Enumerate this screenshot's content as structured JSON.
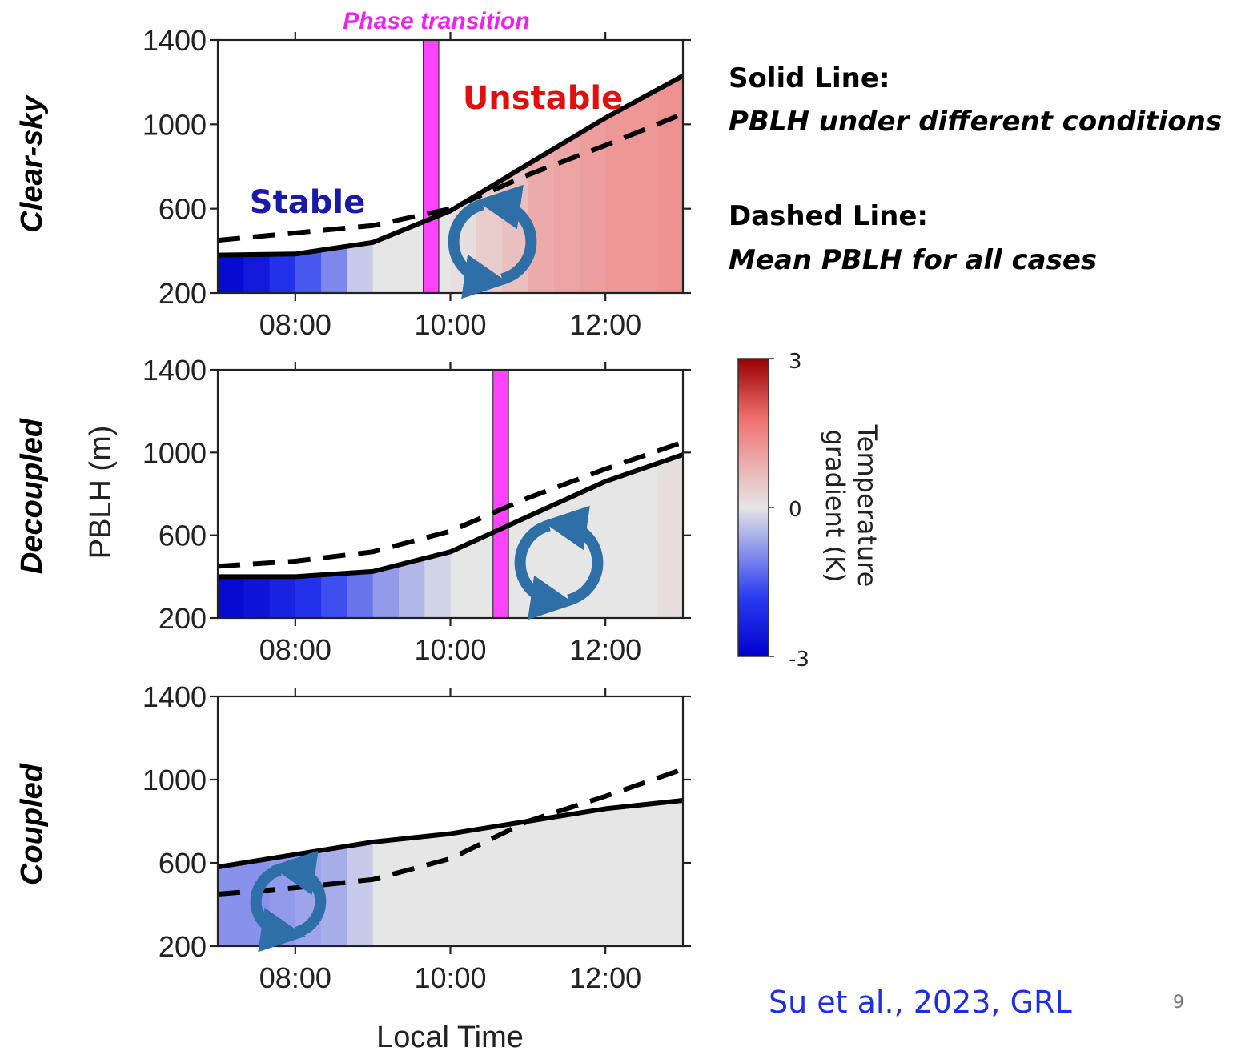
{
  "chart_data": {
    "type": "area",
    "x_range_hours": [
      7.0,
      13.0
    ],
    "ylim": [
      200,
      1400
    ],
    "yticks": [
      "1400",
      "1000",
      "600",
      "200"
    ],
    "xticks": [
      "08:00",
      "10:00",
      "12:00"
    ],
    "xtick_hours": [
      8,
      10,
      12
    ],
    "ylabel": "PBLH (m)",
    "xlabel": "Local Time",
    "annotations": {
      "phase_transition": "Phase transition",
      "stable": "Stable",
      "unstable": "Unstable"
    },
    "legend": {
      "solid_title": "Solid Line:",
      "solid_desc": "PBLH under different conditions",
      "dashed_title": "Dashed Line:",
      "dashed_desc": "Mean PBLH for all cases"
    },
    "colorbar": {
      "label_line1": "Temperature",
      "label_line2": "gradient (K)",
      "max": "3",
      "mid": "0",
      "min": "-3",
      "colors": [
        "#0000cc",
        "#2a3cf0",
        "#e6e6e6",
        "#f07070",
        "#990000"
      ]
    },
    "panels": [
      {
        "label": "Clear-sky",
        "solid": [
          [
            7.0,
            380
          ],
          [
            8.0,
            385
          ],
          [
            9.0,
            440
          ],
          [
            10.0,
            590
          ],
          [
            11.0,
            810
          ],
          [
            12.0,
            1030
          ],
          [
            13.0,
            1230
          ]
        ],
        "dashed": [
          [
            7.0,
            450
          ],
          [
            8.0,
            485
          ],
          [
            9.0,
            520
          ],
          [
            10.0,
            600
          ],
          [
            11.0,
            760
          ],
          [
            12.0,
            900
          ],
          [
            13.0,
            1050
          ]
        ],
        "transition_hours": [
          9.65,
          9.85
        ],
        "gradient": [
          -2.8,
          -2.5,
          -2.0,
          -1.5,
          -1.0,
          -0.3,
          0.0,
          0.0,
          0.0,
          0.1,
          0.4,
          0.6,
          0.9,
          1.0,
          1.1,
          1.2,
          1.2,
          1.3
        ]
      },
      {
        "label": "Decoupled",
        "solid": [
          [
            7.0,
            400
          ],
          [
            8.0,
            400
          ],
          [
            9.0,
            425
          ],
          [
            10.0,
            520
          ],
          [
            11.0,
            690
          ],
          [
            12.0,
            860
          ],
          [
            13.0,
            990
          ]
        ],
        "dashed": [
          [
            7.0,
            450
          ],
          [
            8.0,
            475
          ],
          [
            9.0,
            520
          ],
          [
            10.0,
            620
          ],
          [
            11.0,
            780
          ],
          [
            12.0,
            920
          ],
          [
            13.0,
            1050
          ]
        ],
        "transition_hours": [
          10.55,
          10.75
        ],
        "gradient": [
          -2.8,
          -2.6,
          -2.3,
          -2.0,
          -1.6,
          -1.2,
          -0.8,
          -0.5,
          -0.2,
          0.0,
          0.0,
          0.0,
          0.0,
          0.0,
          0.0,
          0.0,
          0.0,
          0.1
        ]
      },
      {
        "label": "Coupled",
        "solid": [
          [
            7.0,
            580
          ],
          [
            8.0,
            640
          ],
          [
            9.0,
            700
          ],
          [
            10.0,
            740
          ],
          [
            11.0,
            800
          ],
          [
            12.0,
            860
          ],
          [
            13.0,
            900
          ]
        ],
        "dashed": [
          [
            7.0,
            450
          ],
          [
            8.0,
            480
          ],
          [
            9.0,
            520
          ],
          [
            10.0,
            620
          ],
          [
            11.0,
            800
          ],
          [
            12.0,
            920
          ],
          [
            13.0,
            1050
          ]
        ],
        "transition_hours": null,
        "gradient": [
          -0.9,
          -0.9,
          -0.8,
          -0.7,
          -0.6,
          -0.3,
          0.0,
          0.0,
          0.0,
          0.0,
          0.0,
          0.0,
          0.0,
          0.0,
          0.0,
          0.0,
          0.0,
          0.0
        ]
      }
    ]
  },
  "citation": "Su et al., 2023, GRL",
  "page_number": "9"
}
